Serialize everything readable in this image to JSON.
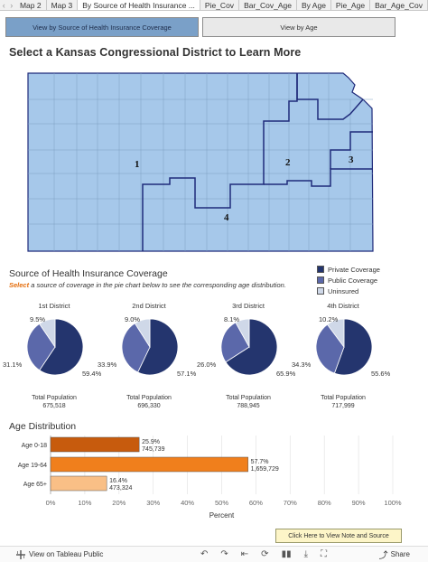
{
  "tabs": [
    "Map 2",
    "Map 3",
    "By Source of Health Insurance ...",
    "Pie_Cov",
    "Bar_Cov_Age",
    "By Age",
    "Pie_Age",
    "Bar_Age_Cov"
  ],
  "buttons": {
    "view_source": "View by Source of Health Insurance Coverage",
    "view_age": "View by Age"
  },
  "main_title": "Select a Kansas Congressional District to Learn More",
  "map": {
    "districts": [
      "1",
      "2",
      "3",
      "4"
    ],
    "fill_color": "#a6c8ea",
    "border_color": "#1f2a7a"
  },
  "coverage": {
    "title": "Source of Health Insurance Coverage",
    "instruction_prefix": "Select",
    "instruction_rest": " a source of coverage in the pie chart below to see the corresponding age distribution.",
    "legend": [
      {
        "label": "Private Coverage",
        "color": "#24356e"
      },
      {
        "label": "Public Coverage",
        "color": "#5b68aa"
      },
      {
        "label": "Uninsured",
        "color": "#cfd8e8"
      }
    ]
  },
  "chart_data": [
    {
      "type": "pie",
      "title": "1st District",
      "categories": [
        "Private Coverage",
        "Public Coverage",
        "Uninsured"
      ],
      "values": [
        59.4,
        31.1,
        9.5
      ],
      "labels": [
        "59.4%",
        "31.1%",
        "9.5%"
      ],
      "total_label": "Total Population",
      "total_value": "675,518"
    },
    {
      "type": "pie",
      "title": "2nd District",
      "categories": [
        "Private Coverage",
        "Public Coverage",
        "Uninsured"
      ],
      "values": [
        57.1,
        33.9,
        9.0
      ],
      "labels": [
        "57.1%",
        "33.9%",
        "9.0%"
      ],
      "total_label": "Total Population",
      "total_value": "696,330"
    },
    {
      "type": "pie",
      "title": "3rd District",
      "categories": [
        "Private Coverage",
        "Public Coverage",
        "Uninsured"
      ],
      "values": [
        65.9,
        26.0,
        8.1
      ],
      "labels": [
        "65.9%",
        "26.0%",
        "8.1%"
      ],
      "total_label": "Total Population",
      "total_value": "788,945"
    },
    {
      "type": "pie",
      "title": "4th District",
      "categories": [
        "Private Coverage",
        "Public Coverage",
        "Uninsured"
      ],
      "values": [
        55.6,
        34.3,
        10.2
      ],
      "labels": [
        "55.6%",
        "34.3%",
        "10.2%"
      ],
      "total_label": "Total Population",
      "total_value": "717,999"
    },
    {
      "type": "bar",
      "title": "Age Distribution",
      "categories": [
        "Age 0-18",
        "Age 19-64",
        "Age 65+"
      ],
      "values": [
        25.9,
        57.7,
        16.4
      ],
      "percent_labels": [
        "25.9%",
        "57.7%",
        "16.4%"
      ],
      "count_labels": [
        "745,739",
        "1,659,729",
        "473,324"
      ],
      "colors": [
        "#c75b0d",
        "#f07f1c",
        "#f9bf86"
      ],
      "xlabel": "Percent",
      "xlim": [
        0,
        100
      ],
      "ticks": [
        "0%",
        "10%",
        "20%",
        "30%",
        "40%",
        "50%",
        "60%",
        "70%",
        "80%",
        "90%",
        "100%"
      ]
    }
  ],
  "note_button": "Click Here to View Note and Source",
  "footer": {
    "view_on": "View on Tableau Public",
    "share": "Share"
  }
}
